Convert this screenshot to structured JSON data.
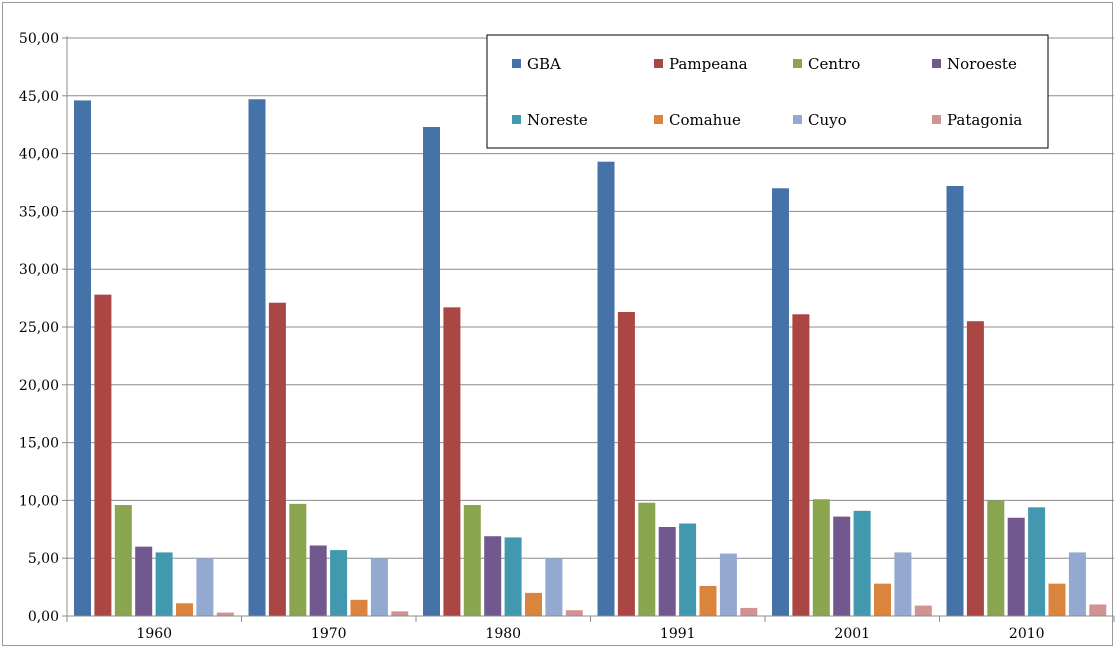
{
  "chart_data": {
    "type": "bar",
    "title": "",
    "xlabel": "",
    "ylabel": "",
    "categories": [
      "1960",
      "1970",
      "1980",
      "1991",
      "2001",
      "2010"
    ],
    "ylim": [
      0,
      50
    ],
    "y_ticks": [
      "0,00",
      "5,00",
      "10,00",
      "15,00",
      "20,00",
      "25,00",
      "30,00",
      "35,00",
      "40,00",
      "45,00",
      "50,00"
    ],
    "grid": true,
    "legend_position": "top-right",
    "series": [
      {
        "name": "GBA",
        "color": "#4572a7",
        "values": [
          44.6,
          44.7,
          42.3,
          39.3,
          37.0,
          37.2
        ]
      },
      {
        "name": "Pampeana",
        "color": "#aa4643",
        "values": [
          27.8,
          27.1,
          26.7,
          26.3,
          26.1,
          25.5
        ]
      },
      {
        "name": "Centro",
        "color": "#89a54e",
        "values": [
          9.6,
          9.7,
          9.6,
          9.8,
          10.1,
          10.0
        ]
      },
      {
        "name": "Noroeste",
        "color": "#71588f",
        "values": [
          6.0,
          6.1,
          6.9,
          7.7,
          8.6,
          8.5
        ]
      },
      {
        "name": "Noreste",
        "color": "#4198af",
        "values": [
          5.5,
          5.7,
          6.8,
          8.0,
          9.1,
          9.4
        ]
      },
      {
        "name": "Comahue",
        "color": "#db843d",
        "values": [
          1.1,
          1.4,
          2.0,
          2.6,
          2.8,
          2.8
        ]
      },
      {
        "name": "Cuyo",
        "color": "#93a9cf",
        "values": [
          5.0,
          5.0,
          5.0,
          5.4,
          5.5,
          5.5
        ]
      },
      {
        "name": "Patagonia",
        "color": "#d19392",
        "values": [
          0.3,
          0.4,
          0.5,
          0.7,
          0.9,
          1.0
        ]
      }
    ]
  }
}
